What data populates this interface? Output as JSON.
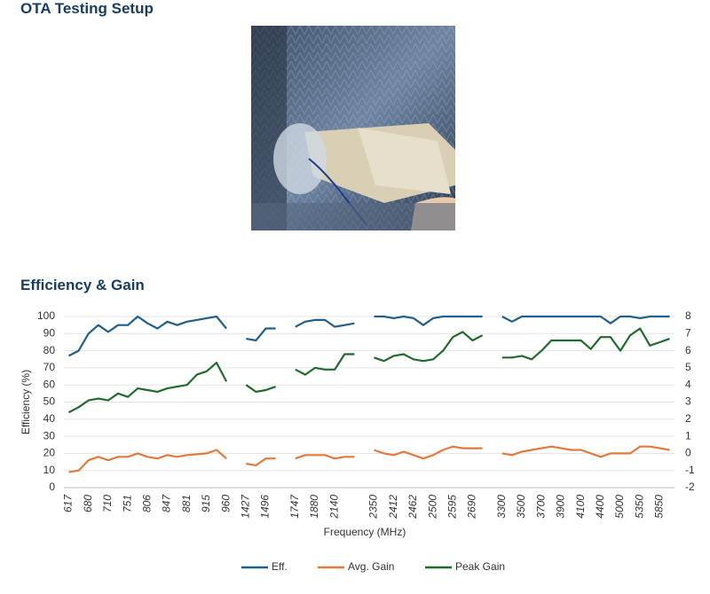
{
  "sections": [
    {
      "title": "OTA Testing Setup"
    },
    {
      "title": "Efficiency & Gain"
    }
  ],
  "chart_data": {
    "type": "line",
    "x_label": "Frequency (MHz)",
    "y_label": "Efficiency (%)",
    "categories": [
      "617",
      null,
      "680",
      null,
      "710",
      null,
      "751",
      null,
      "806",
      null,
      "847",
      null,
      "881",
      null,
      "915",
      null,
      "960",
      null,
      "1427",
      null,
      "1496",
      null,
      null,
      "1747",
      null,
      "1880",
      null,
      "2140",
      null,
      null,
      null,
      "2350",
      null,
      "2412",
      null,
      "2462",
      null,
      "2500",
      null,
      "2595",
      null,
      "2690",
      null,
      null,
      "3300",
      null,
      "3500",
      null,
      "3700",
      null,
      "3900",
      null,
      "4100",
      null,
      "4400",
      null,
      "5000",
      null,
      "5350",
      null,
      "5850",
      null
    ],
    "series": [
      {
        "name": "Eff.",
        "color": "#1f5f8b",
        "axis": "y",
        "values": [
          77,
          80,
          90,
          95,
          91,
          95,
          95,
          100,
          96,
          93,
          97,
          95,
          97,
          98,
          99,
          100,
          93,
          null,
          87,
          86,
          93,
          93,
          null,
          94,
          97,
          98,
          98,
          94,
          95,
          96,
          null,
          100,
          100,
          99,
          100,
          99,
          95,
          99,
          100,
          100,
          100,
          100,
          100,
          null,
          100,
          97,
          100,
          100,
          100,
          100,
          100,
          100,
          100,
          100,
          100,
          96,
          100,
          100,
          99,
          100,
          100,
          100
        ]
      },
      {
        "name": "Avg. Gain",
        "color": "#e3793a",
        "axis": "y2",
        "values": [
          -1.1,
          -1.0,
          -0.4,
          -0.2,
          -0.4,
          -0.2,
          -0.2,
          0,
          -0.2,
          -0.3,
          -0.1,
          -0.2,
          -0.1,
          -0.05,
          0,
          0.2,
          -0.3,
          null,
          -0.6,
          -0.7,
          -0.3,
          -0.3,
          null,
          -0.3,
          -0.1,
          -0.1,
          -0.1,
          -0.3,
          -0.2,
          -0.2,
          null,
          0.2,
          0,
          -0.1,
          0.1,
          -0.1,
          -0.3,
          -0.1,
          0.2,
          0.4,
          0.3,
          0.3,
          0.3,
          null,
          0,
          -0.1,
          0.1,
          0.2,
          0.3,
          0.4,
          0.3,
          0.2,
          0.2,
          0,
          -0.2,
          0,
          0,
          0,
          0.4,
          0.4,
          0.3,
          0.2
        ]
      },
      {
        "name": "Peak Gain",
        "color": "#1f6b2c",
        "axis": "y2",
        "values": [
          2.4,
          2.7,
          3.1,
          3.2,
          3.1,
          3.5,
          3.3,
          3.8,
          3.7,
          3.6,
          3.8,
          3.9,
          4.0,
          4.6,
          4.8,
          5.3,
          4.2,
          null,
          4.0,
          3.6,
          3.7,
          3.9,
          null,
          4.9,
          4.6,
          5.0,
          4.9,
          4.9,
          5.8,
          5.8,
          null,
          5.6,
          5.4,
          5.7,
          5.8,
          5.5,
          5.4,
          5.5,
          6.0,
          6.8,
          7.1,
          6.6,
          6.9,
          null,
          5.6,
          5.6,
          5.7,
          5.5,
          6.0,
          6.6,
          6.6,
          6.6,
          6.6,
          6.1,
          6.8,
          6.8,
          6.0,
          6.9,
          7.3,
          6.3,
          6.5,
          6.7
        ]
      }
    ],
    "ylim": [
      0,
      100
    ],
    "yticks": [
      0,
      10,
      20,
      30,
      40,
      50,
      60,
      70,
      80,
      90,
      100
    ],
    "y2lim": [
      -2,
      8
    ],
    "y2ticks": [
      -2,
      -1,
      0,
      1,
      2,
      3,
      4,
      5,
      6,
      7,
      8
    ],
    "grid": true,
    "legend": "bottom"
  }
}
